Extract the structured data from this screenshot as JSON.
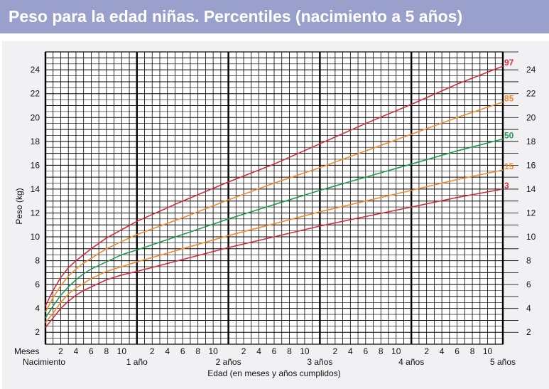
{
  "header": {
    "title": "Peso para la edad niñas. Percentiles (nacimiento a 5 años)"
  },
  "chart_data": {
    "type": "line",
    "title": "Peso para la edad niñas. Percentiles (nacimiento a 5 años)",
    "ylabel": "Peso (kg)",
    "xlabel": "Edad (en meses y años cumplidos)",
    "xlim": [
      0,
      60
    ],
    "ylim": [
      1,
      25.5
    ],
    "y_ticks": [
      2,
      4,
      6,
      8,
      10,
      12,
      14,
      16,
      18,
      20,
      22,
      24
    ],
    "months_label": "Meses",
    "month_ticks": [
      "2",
      "4",
      "6",
      "8",
      "10"
    ],
    "year_labels": [
      "Nacimiento",
      "1 año",
      "2 años",
      "3 años",
      "4 años",
      "5 años"
    ],
    "grid": true,
    "x": [
      0,
      1,
      2,
      3,
      4,
      5,
      6,
      8,
      10,
      12,
      18,
      24,
      30,
      36,
      42,
      48,
      54,
      60
    ],
    "series": [
      {
        "name": "97",
        "color": "#d42a3c",
        "values": [
          4.2,
          5.5,
          6.6,
          7.4,
          8.0,
          8.5,
          9.0,
          9.9,
          10.6,
          11.3,
          13.0,
          14.6,
          16.1,
          17.8,
          19.5,
          21.1,
          22.8,
          24.3
        ]
      },
      {
        "name": "85",
        "color": "#f08a2a",
        "values": [
          3.7,
          4.9,
          5.9,
          6.7,
          7.3,
          7.8,
          8.2,
          9.0,
          9.6,
          10.2,
          11.6,
          13.1,
          14.5,
          15.8,
          17.2,
          18.6,
          20.0,
          21.3
        ]
      },
      {
        "name": "50",
        "color": "#1f9a52",
        "values": [
          3.2,
          4.2,
          5.1,
          5.8,
          6.4,
          6.9,
          7.3,
          7.9,
          8.5,
          8.9,
          10.2,
          11.5,
          12.7,
          13.9,
          15.0,
          16.1,
          17.2,
          18.2
        ]
      },
      {
        "name": "15",
        "color": "#f08a2a",
        "values": [
          2.8,
          3.6,
          4.5,
          5.2,
          5.7,
          6.1,
          6.5,
          7.1,
          7.5,
          7.9,
          9.0,
          10.1,
          11.1,
          12.1,
          13.0,
          13.9,
          14.8,
          15.6
        ]
      },
      {
        "name": "3",
        "color": "#d42a3c",
        "values": [
          2.4,
          3.2,
          4.0,
          4.6,
          5.1,
          5.5,
          5.8,
          6.4,
          6.8,
          7.1,
          8.1,
          9.1,
          10.0,
          10.9,
          11.7,
          12.5,
          13.3,
          14.0
        ]
      }
    ]
  }
}
